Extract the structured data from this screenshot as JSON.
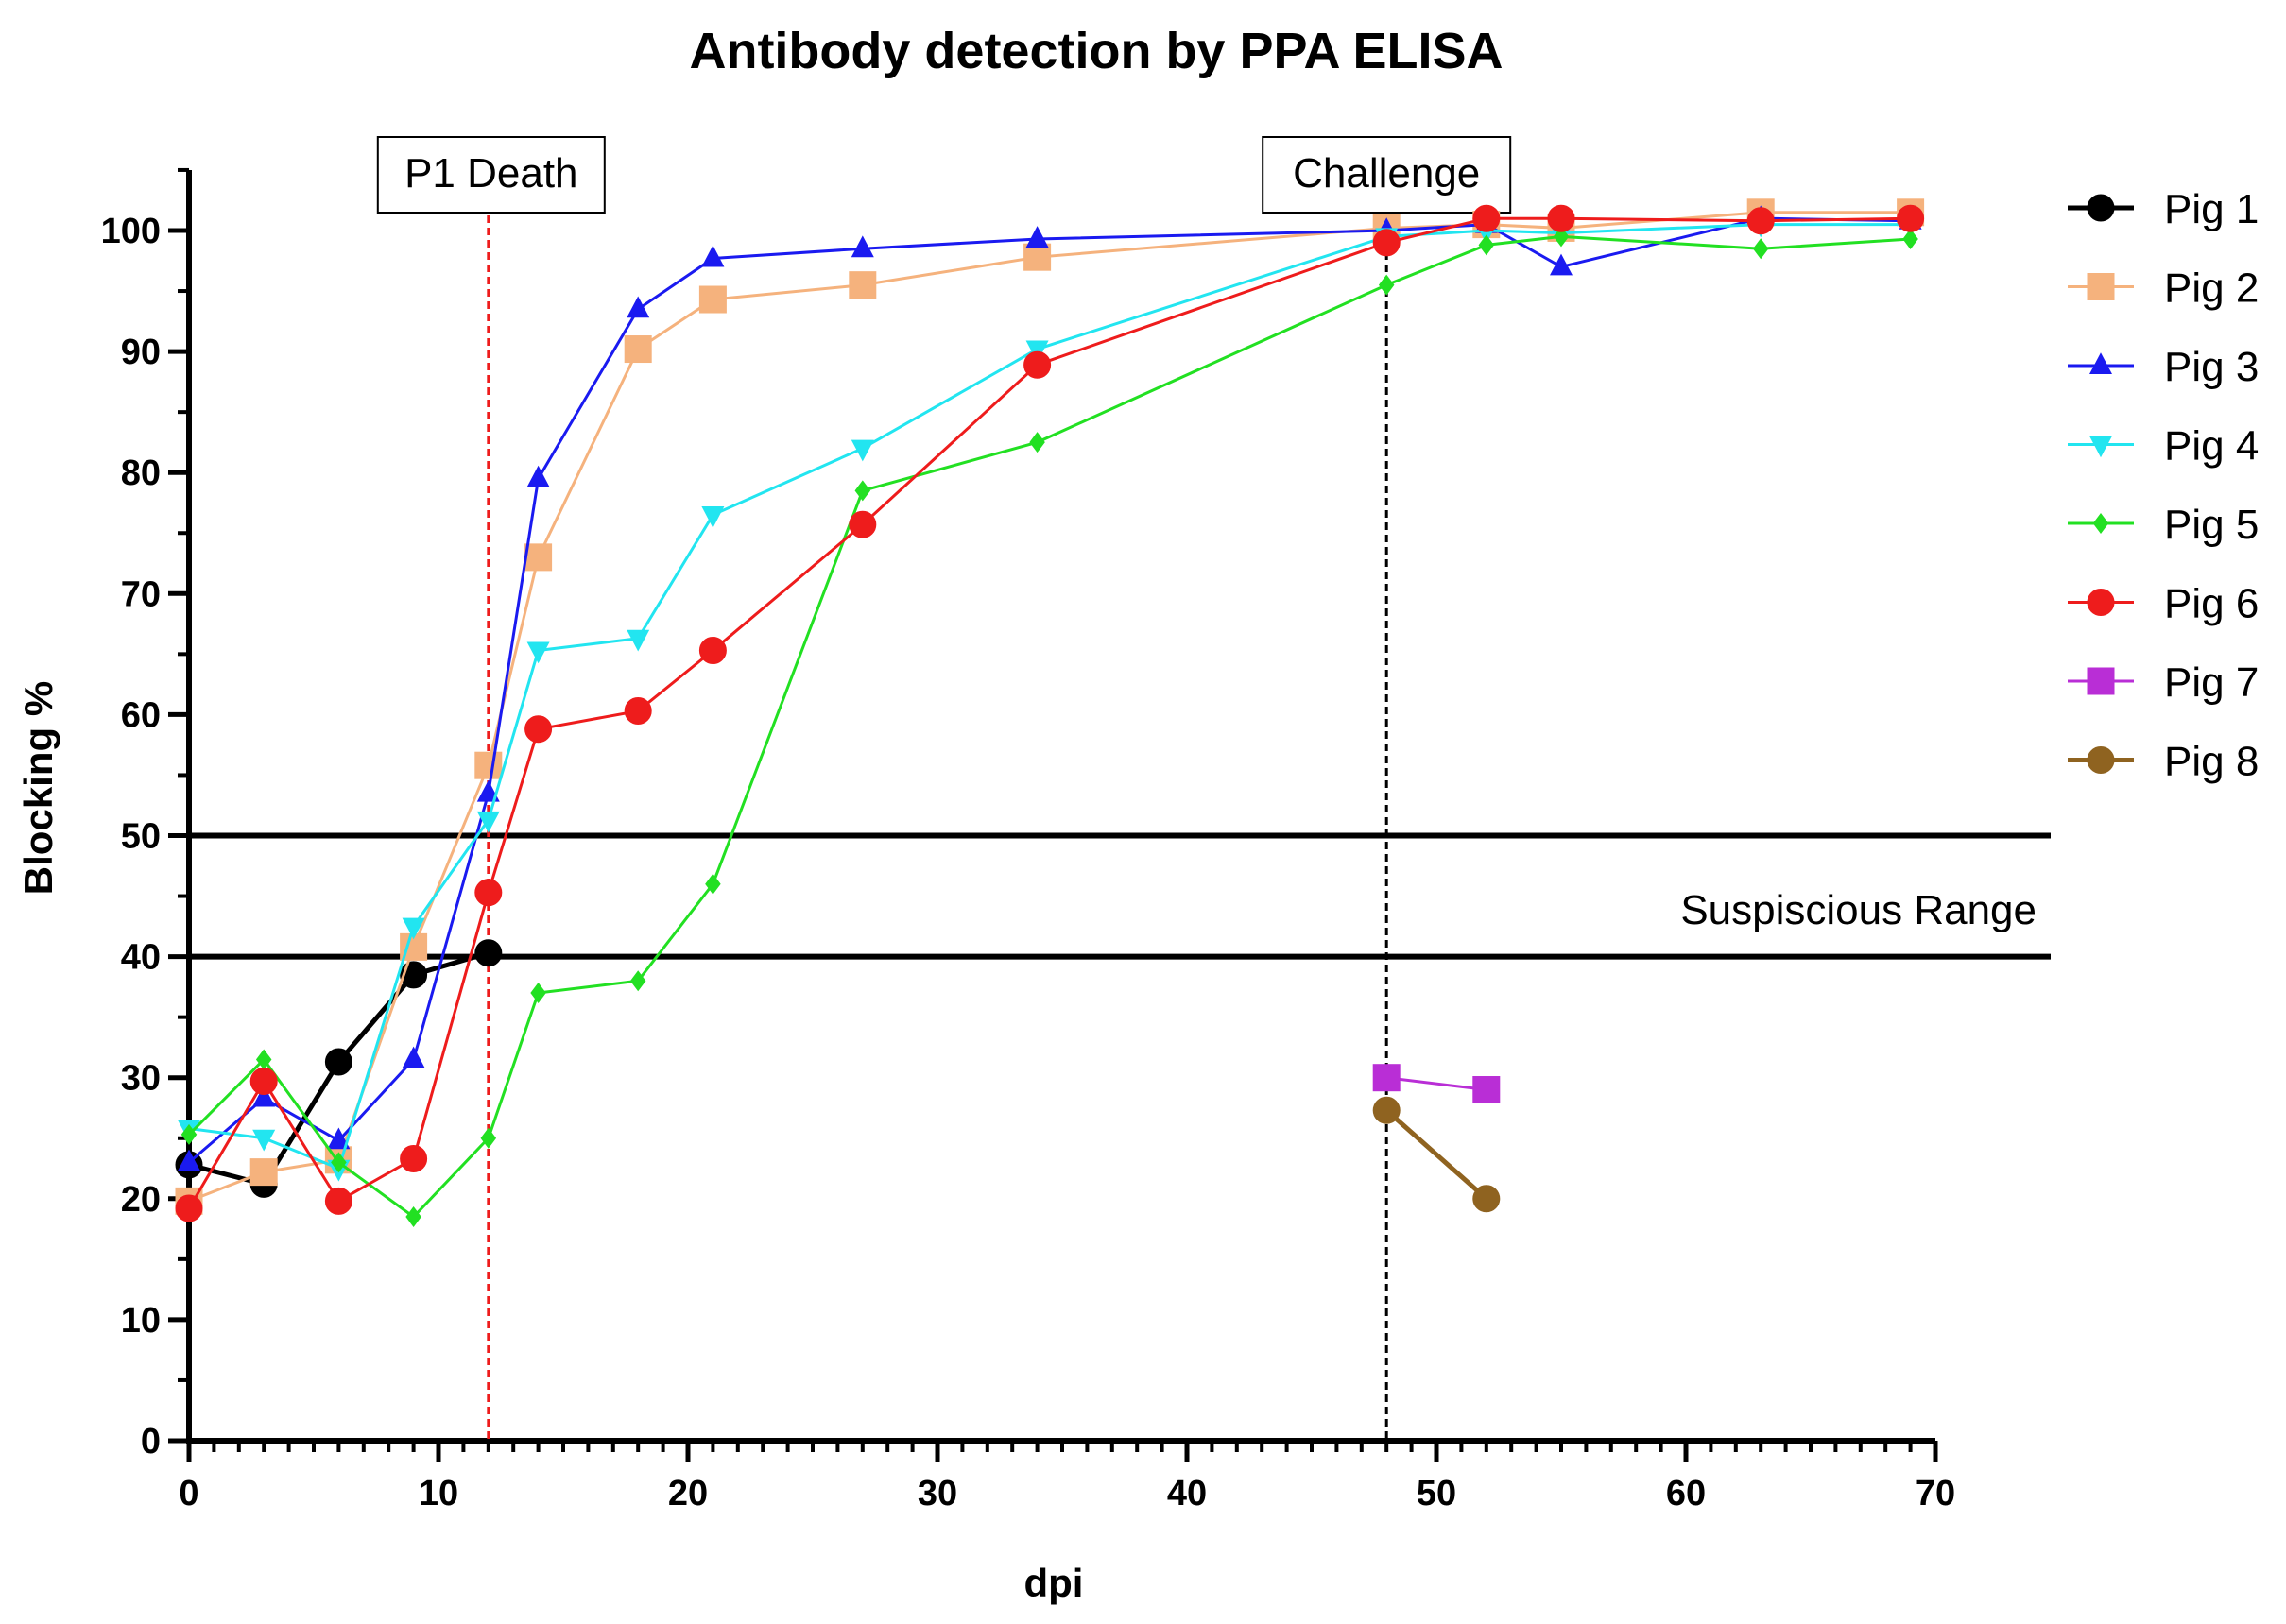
{
  "chart_data": {
    "type": "line",
    "title": "Antibody detection by PPA ELISA",
    "xlabel": "dpi",
    "ylabel": "Blocking %",
    "xlim": [
      0,
      70
    ],
    "ylim": [
      0,
      105
    ],
    "xticks": [
      "0",
      "10",
      "20",
      "30",
      "40",
      "50",
      "60",
      "70"
    ],
    "yticks": [
      "0",
      "10",
      "20",
      "30",
      "40",
      "50",
      "60",
      "70",
      "80",
      "90",
      "100"
    ],
    "legend_position": "right",
    "series": [
      {
        "name": "Pig 1",
        "color": "#000000",
        "marker": "circle",
        "x": [
          0,
          3,
          6,
          9,
          12
        ],
        "y": [
          22.8,
          21.2,
          31.3,
          38.5,
          40.3
        ]
      },
      {
        "name": "Pig 2",
        "color": "#f5b27d",
        "marker": "square",
        "x": [
          0,
          3,
          6,
          9,
          12,
          14,
          18,
          21,
          27,
          34,
          48,
          52,
          55,
          63,
          69
        ],
        "y": [
          19.8,
          22.2,
          23.2,
          40.8,
          55.8,
          73,
          90.2,
          94.3,
          95.5,
          97.8,
          100.2,
          100.5,
          100.2,
          101.5,
          101.5
        ]
      },
      {
        "name": "Pig 3",
        "color": "#1a1af0",
        "marker": "triangle-up",
        "x": [
          0,
          3,
          6,
          9,
          12,
          14,
          18,
          21,
          27,
          34,
          48,
          52,
          55,
          63,
          69
        ],
        "y": [
          23,
          28.3,
          24.8,
          31.5,
          53.5,
          79.5,
          93.5,
          97.7,
          98.5,
          99.3,
          100,
          100.5,
          97,
          101,
          100.8
        ]
      },
      {
        "name": "Pig 4",
        "color": "#22e5f0",
        "marker": "triangle-down",
        "x": [
          0,
          3,
          6,
          9,
          12,
          14,
          18,
          21,
          27,
          34,
          48,
          52,
          55,
          63,
          69
        ],
        "y": [
          25.8,
          25,
          22.5,
          42.5,
          51.3,
          65.3,
          66.3,
          76.5,
          82,
          90.2,
          99.5,
          100,
          99.8,
          100.5,
          100.5
        ]
      },
      {
        "name": "Pig 5",
        "color": "#22e022",
        "marker": "diamond",
        "x": [
          0,
          3,
          6,
          9,
          12,
          14,
          18,
          21,
          27,
          34,
          48,
          52,
          55,
          63,
          69
        ],
        "y": [
          25.3,
          31.5,
          23,
          18.5,
          25,
          37,
          38,
          46,
          78.5,
          82.5,
          95.5,
          98.8,
          99.5,
          98.5,
          99.3
        ]
      },
      {
        "name": "Pig 6",
        "color": "#ee1c1c",
        "marker": "circle",
        "x": [
          0,
          3,
          6,
          9,
          12,
          14,
          18,
          21,
          27,
          34,
          48,
          52,
          55,
          63,
          69
        ],
        "y": [
          19.2,
          29.7,
          19.8,
          23.3,
          45.3,
          58.8,
          60.3,
          65.3,
          75.7,
          88.9,
          99,
          101,
          101,
          100.8,
          101
        ]
      },
      {
        "name": "Pig 7",
        "color": "#b92ed6",
        "marker": "square",
        "x": [
          48,
          52
        ],
        "y": [
          30,
          29
        ]
      },
      {
        "name": "Pig 8",
        "color": "#8f6320",
        "marker": "circle",
        "x": [
          48,
          52
        ],
        "y": [
          27.3,
          20
        ]
      }
    ],
    "reference_lines": [
      {
        "orientation": "horizontal",
        "value": 50,
        "color": "#000000",
        "style": "solid"
      },
      {
        "orientation": "horizontal",
        "value": 40,
        "color": "#000000",
        "style": "solid"
      },
      {
        "orientation": "vertical",
        "value": 12,
        "color": "#ee1c1c",
        "style": "dashed"
      },
      {
        "orientation": "vertical",
        "value": 48,
        "color": "#000000",
        "style": "dashed"
      }
    ],
    "annotations": [
      {
        "text": "P1 Death",
        "x": 12,
        "boxed": true
      },
      {
        "text": "Challenge",
        "x": 48,
        "boxed": true
      },
      {
        "text": "Suspiscious Range",
        "y": 45,
        "boxed": false
      }
    ]
  }
}
